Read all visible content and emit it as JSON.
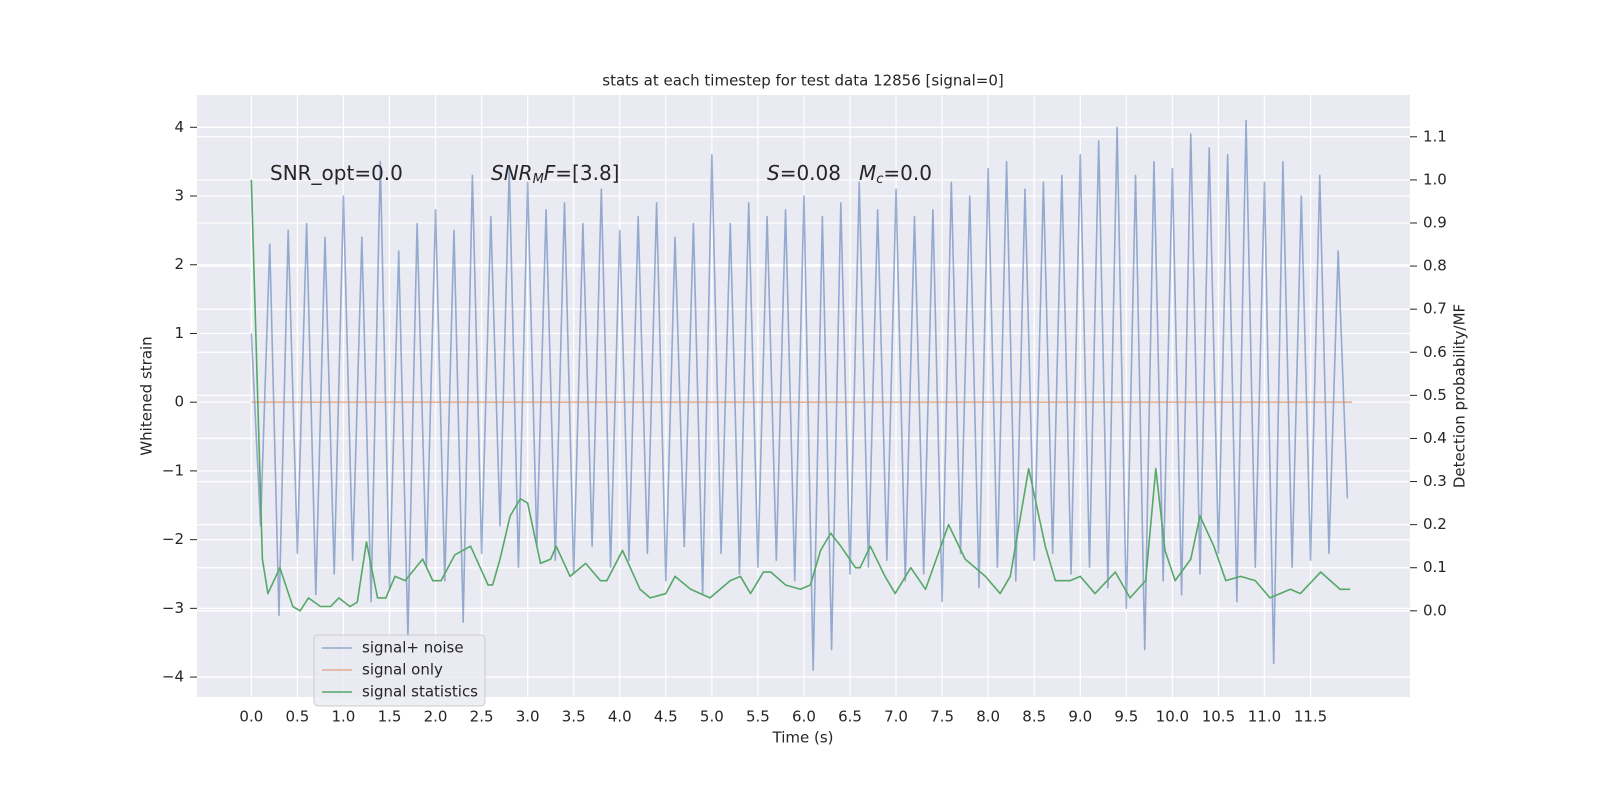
{
  "chart_data": {
    "type": "line",
    "title": "stats at each timestep for test data 12856 [signal=0]",
    "xlabel": "Time (s)",
    "ylabel": "Whitened strain",
    "y2label": "Detection probability/MF",
    "xlim": [
      -0.59,
      12.58
    ],
    "ylim": [
      -4.29,
      4.47
    ],
    "y2lim": [
      -0.2,
      1.197
    ],
    "xticks": [
      {
        "value": 0,
        "label": "0.0"
      },
      0.5,
      {
        "value": 1,
        "label": "1.0"
      },
      1.5,
      {
        "value": 2,
        "label": "2.0"
      },
      2.5,
      {
        "value": 3,
        "label": "3.0"
      },
      3.5,
      {
        "value": 4,
        "label": "4.0"
      },
      4.5,
      {
        "value": 5,
        "label": "5.0"
      },
      5.5,
      {
        "value": 6,
        "label": "6.0"
      },
      6.5,
      {
        "value": 7,
        "label": "7.0"
      },
      7.5,
      {
        "value": 8,
        "label": "8.0"
      },
      8.5,
      {
        "value": 9,
        "label": "9.0"
      },
      9.5,
      {
        "value": 10,
        "label": "10.0"
      },
      10.5,
      {
        "value": 11,
        "label": "11.0"
      },
      11.5
    ],
    "yticks": [
      {
        "value": -4,
        "label": "−4"
      },
      {
        "value": -3,
        "label": "−3"
      },
      {
        "value": -2,
        "label": "−2"
      },
      {
        "value": -1,
        "label": "−1"
      },
      0,
      1,
      2,
      3,
      4
    ],
    "y2ticks": [
      {
        "value": 0,
        "label": "0.0"
      },
      0.1,
      0.2,
      0.3,
      0.4,
      0.5,
      0.6,
      0.7,
      0.8,
      0.9,
      {
        "value": 1,
        "label": "1.0"
      },
      1.1
    ],
    "grid": true,
    "legend": "lower left",
    "annotations": [
      [
        {
          "text": "SNR_opt=0.0"
        }
      ],
      [
        {
          "text": "SNR",
          "italic": true
        },
        {
          "text": "M",
          "italic": true,
          "sub": true
        },
        {
          "text": "F",
          "italic": true
        },
        {
          "text": "=[3.8]"
        }
      ],
      [
        {
          "text": "S",
          "italic": true
        },
        {
          "text": "=0.08"
        }
      ],
      [
        {
          "text": "M",
          "italic": true
        },
        {
          "text": "c",
          "italic": true,
          "sub": true
        },
        {
          "text": "=0.0"
        }
      ]
    ],
    "series": [
      {
        "name": "signal+ noise",
        "color": "#4c72b0",
        "axis": "y",
        "x": [
          0.0,
          0.1,
          0.2,
          0.3,
          0.4,
          0.5,
          0.6,
          0.7,
          0.8,
          0.9,
          1.0,
          1.1,
          1.2,
          1.3,
          1.4,
          1.5,
          1.6,
          1.7,
          1.8,
          1.9,
          2.0,
          2.1,
          2.2,
          2.3,
          2.4,
          2.5,
          2.6,
          2.7,
          2.8,
          2.9,
          3.0,
          3.1,
          3.2,
          3.3,
          3.4,
          3.5,
          3.6,
          3.7,
          3.8,
          3.9,
          4.0,
          4.1,
          4.2,
          4.3,
          4.4,
          4.5,
          4.6,
          4.7,
          4.8,
          4.9,
          5.0,
          5.1,
          5.2,
          5.3,
          5.4,
          5.5,
          5.6,
          5.7,
          5.8,
          5.9,
          6.0,
          6.1,
          6.2,
          6.3,
          6.4,
          6.5,
          6.6,
          6.7,
          6.8,
          6.9,
          7.0,
          7.1,
          7.2,
          7.3,
          7.4,
          7.5,
          7.6,
          7.7,
          7.8,
          7.9,
          8.0,
          8.1,
          8.2,
          8.3,
          8.4,
          8.5,
          8.6,
          8.7,
          8.8,
          8.9,
          9.0,
          9.1,
          9.2,
          9.3,
          9.4,
          9.5,
          9.6,
          9.7,
          9.8,
          9.9,
          10.0,
          10.1,
          10.2,
          10.3,
          10.4,
          10.5,
          10.6,
          10.7,
          10.8,
          10.9,
          11.0,
          11.1,
          11.2,
          11.3,
          11.4,
          11.5,
          11.6,
          11.7,
          11.8,
          11.9
        ],
        "values": [
          1.0,
          -1.8,
          2.3,
          -3.1,
          2.5,
          -2.2,
          2.6,
          -2.8,
          2.4,
          -2.5,
          3.0,
          -2.3,
          2.4,
          -2.9,
          3.5,
          -2.7,
          2.2,
          -3.4,
          2.6,
          -2.4,
          2.8,
          -2.6,
          2.5,
          -3.2,
          3.3,
          -2.2,
          2.7,
          -1.8,
          3.4,
          -2.4,
          3.2,
          -2.1,
          2.8,
          -2.3,
          2.9,
          -2.5,
          2.6,
          -2.1,
          3.1,
          -2.4,
          2.5,
          -2.3,
          2.7,
          -2.2,
          2.9,
          -2.6,
          2.4,
          -2.1,
          2.6,
          -2.8,
          3.6,
          -2.2,
          2.6,
          -2.5,
          2.9,
          -2.4,
          2.7,
          -2.3,
          2.8,
          -2.6,
          3.0,
          -3.9,
          2.7,
          -3.6,
          2.9,
          -2.5,
          3.2,
          -2.4,
          2.8,
          -2.3,
          3.1,
          -2.6,
          2.7,
          -2.5,
          2.8,
          -2.9,
          3.2,
          -2.2,
          3.0,
          -2.7,
          3.4,
          -2.4,
          3.5,
          -2.6,
          3.1,
          -2.3,
          3.2,
          -2.2,
          3.3,
          -2.5,
          3.6,
          -2.4,
          3.8,
          -2.7,
          4.0,
          -3.0,
          3.3,
          -3.6,
          3.5,
          -2.6,
          3.4,
          -2.8,
          3.9,
          -2.5,
          3.7,
          -2.2,
          3.6,
          -2.9,
          4.1,
          -2.4,
          3.2,
          -3.8,
          3.5,
          -2.4,
          3.0,
          -2.3,
          3.3,
          -2.2,
          2.2,
          -1.4
        ]
      },
      {
        "name": "signal only",
        "color": "#dd8452",
        "axis": "y",
        "x": [
          0.0,
          11.95
        ],
        "values": [
          0,
          0
        ]
      },
      {
        "name": "signal statistics",
        "color": "#55a868",
        "axis": "y2",
        "x": [
          0.0,
          0.12,
          0.18,
          0.31,
          0.45,
          0.53,
          0.62,
          0.75,
          0.86,
          0.95,
          1.07,
          1.15,
          1.25,
          1.37,
          1.46,
          1.56,
          1.67,
          1.86,
          1.97,
          2.06,
          2.21,
          2.38,
          2.57,
          2.62,
          2.7,
          2.81,
          2.92,
          3.0,
          3.14,
          3.25,
          3.31,
          3.46,
          3.63,
          3.79,
          3.86,
          4.03,
          4.22,
          4.33,
          4.5,
          4.6,
          4.77,
          4.98,
          5.2,
          5.31,
          5.42,
          5.56,
          5.64,
          5.8,
          5.96,
          6.07,
          6.18,
          6.29,
          6.4,
          6.56,
          6.61,
          6.72,
          6.88,
          6.99,
          7.16,
          7.32,
          7.57,
          7.75,
          7.97,
          8.13,
          8.24,
          8.44,
          8.62,
          8.73,
          8.89,
          9.0,
          9.16,
          9.38,
          9.54,
          9.71,
          9.82,
          9.92,
          10.03,
          10.2,
          10.3,
          10.45,
          10.58,
          10.74,
          10.9,
          11.06,
          11.28,
          11.39,
          11.61,
          11.82,
          11.93
        ],
        "values": [
          1.0,
          0.12,
          0.04,
          0.1,
          0.01,
          0.0,
          0.03,
          0.01,
          0.01,
          0.03,
          0.01,
          0.02,
          0.16,
          0.03,
          0.03,
          0.08,
          0.07,
          0.12,
          0.07,
          0.07,
          0.13,
          0.15,
          0.06,
          0.06,
          0.12,
          0.22,
          0.26,
          0.25,
          0.11,
          0.12,
          0.15,
          0.08,
          0.11,
          0.07,
          0.07,
          0.14,
          0.05,
          0.03,
          0.04,
          0.08,
          0.05,
          0.03,
          0.07,
          0.08,
          0.04,
          0.09,
          0.09,
          0.06,
          0.05,
          0.06,
          0.14,
          0.18,
          0.15,
          0.1,
          0.1,
          0.15,
          0.08,
          0.04,
          0.1,
          0.05,
          0.2,
          0.12,
          0.08,
          0.04,
          0.08,
          0.33,
          0.15,
          0.07,
          0.07,
          0.08,
          0.04,
          0.09,
          0.03,
          0.07,
          0.33,
          0.14,
          0.07,
          0.12,
          0.22,
          0.15,
          0.07,
          0.08,
          0.07,
          0.03,
          0.05,
          0.04,
          0.09,
          0.05,
          0.05
        ]
      }
    ]
  }
}
